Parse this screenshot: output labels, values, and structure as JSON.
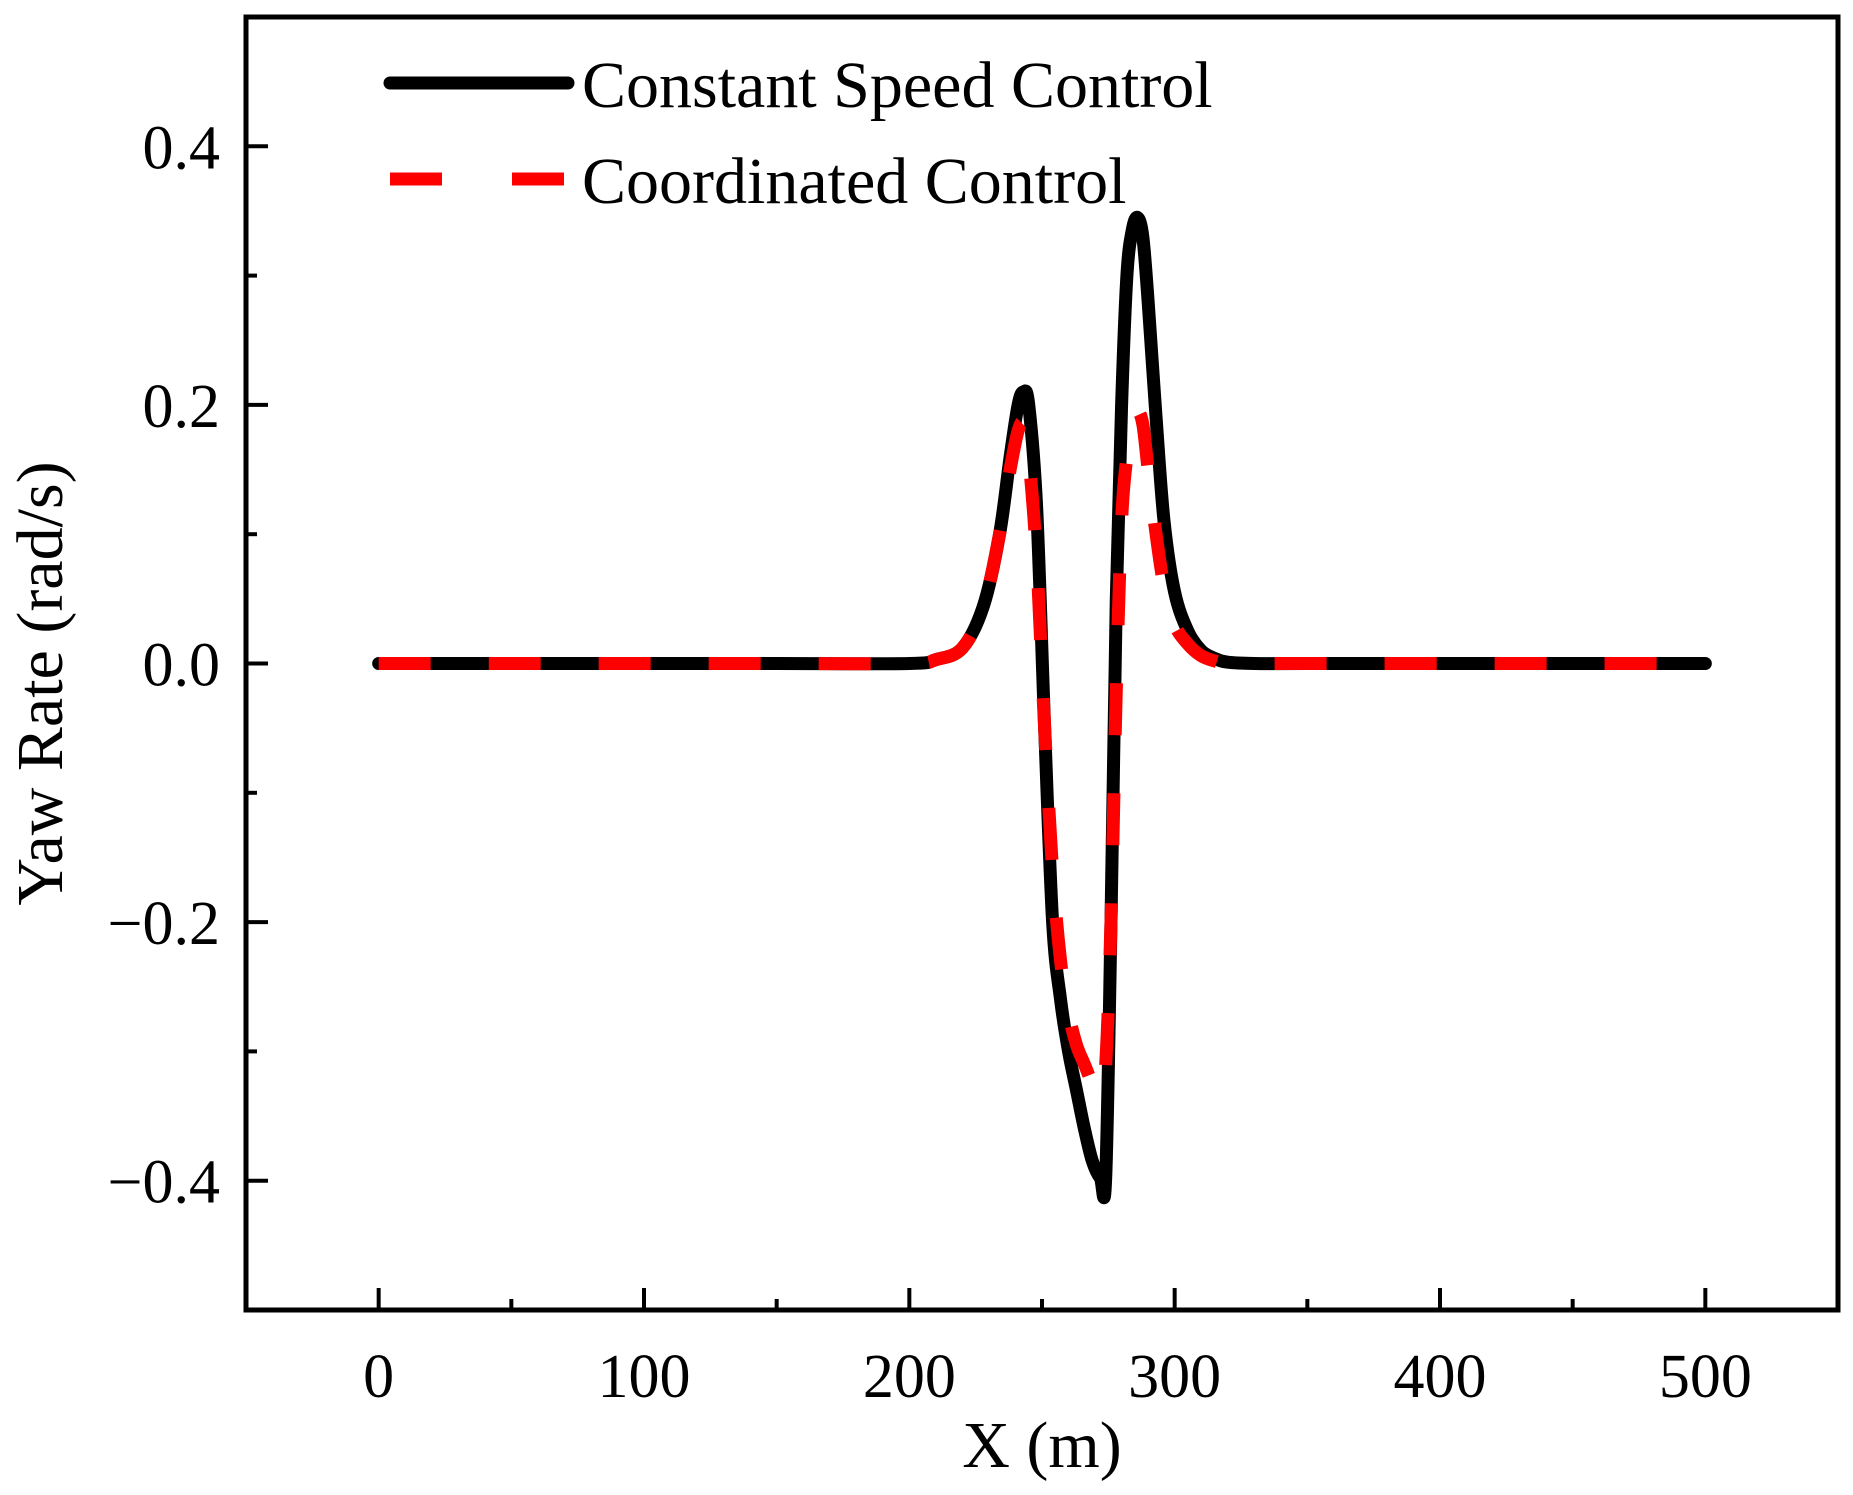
{
  "chart_data": {
    "type": "line",
    "title": "",
    "xlabel": "X (m)",
    "ylabel": "Yaw Rate (rad/s)",
    "xlim": [
      -50,
      550
    ],
    "ylim": [
      -0.5,
      0.5
    ],
    "x_ticks": [
      0,
      100,
      200,
      300,
      400,
      500
    ],
    "x_tick_labels": [
      "0",
      "100",
      "200",
      "300",
      "400",
      "500"
    ],
    "x_minor_ticks": [
      50,
      150,
      250,
      350,
      450
    ],
    "y_ticks": [
      -0.4,
      -0.2,
      0.0,
      0.2,
      0.4
    ],
    "y_tick_labels": [
      "−0.4",
      "−0.2",
      "0.0",
      "0.2",
      "0.4"
    ],
    "y_minor_ticks": [
      -0.3,
      -0.1,
      0.1,
      0.3
    ],
    "grid": false,
    "legend_position": "top-left",
    "series": [
      {
        "name": "Constant Speed Control",
        "color": "#000000",
        "style": "solid",
        "x": [
          0,
          50,
          100,
          150,
          200,
          210,
          220,
          228,
          234,
          238,
          241,
          243,
          245,
          248,
          251,
          254,
          257,
          260,
          263,
          266,
          269,
          272,
          274,
          276,
          278,
          280,
          282,
          284,
          286,
          288,
          290,
          293,
          296,
          300,
          305,
          310,
          315,
          320,
          330,
          350,
          400,
          450,
          500
        ],
        "y": [
          0,
          0,
          0,
          0,
          0,
          0.003,
          0.012,
          0.045,
          0.1,
          0.16,
          0.2,
          0.21,
          0.2,
          0.12,
          -0.05,
          -0.2,
          -0.26,
          -0.3,
          -0.33,
          -0.36,
          -0.385,
          -0.398,
          -0.398,
          -0.2,
          0.05,
          0.2,
          0.3,
          0.335,
          0.345,
          0.33,
          0.28,
          0.19,
          0.11,
          0.055,
          0.025,
          0.01,
          0.004,
          0.001,
          0,
          0,
          0,
          0,
          0
        ]
      },
      {
        "name": "Coordinated Control",
        "color": "#ff0000",
        "style": "dashed",
        "x": [
          0,
          50,
          100,
          150,
          200,
          210,
          220,
          228,
          234,
          238,
          241,
          243,
          245,
          248,
          251,
          254,
          257,
          260,
          263,
          266,
          269,
          272,
          274,
          276,
          278,
          280,
          282,
          284,
          286,
          288,
          290,
          293,
          296,
          300,
          305,
          310,
          315,
          320,
          330,
          350,
          400,
          450,
          500
        ],
        "y": [
          0,
          0,
          0,
          0,
          0,
          0.003,
          0.012,
          0.045,
          0.1,
          0.15,
          0.18,
          0.185,
          0.16,
          0.08,
          -0.05,
          -0.16,
          -0.23,
          -0.27,
          -0.295,
          -0.31,
          -0.325,
          -0.335,
          -0.31,
          -0.2,
          -0.02,
          0.11,
          0.16,
          0.185,
          0.195,
          0.185,
          0.15,
          0.1,
          0.06,
          0.03,
          0.015,
          0.006,
          0.002,
          0,
          0,
          0,
          0,
          0,
          0
        ]
      }
    ]
  }
}
